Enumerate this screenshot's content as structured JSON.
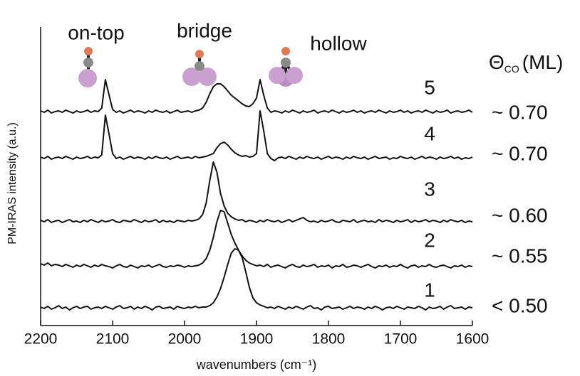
{
  "chart_data": {
    "type": "line",
    "x_label": "wavenumbers (cm⁻¹)",
    "y_label": "PM-IRAS intensity (a.u.)",
    "site_labels": [
      "on-top",
      "bridge",
      "hollow"
    ],
    "coverage_header": {
      "symbol": "Θ",
      "subscript": "CO",
      "unit": "(ML)"
    },
    "coverage_labels": [
      "< 0.50",
      "~ 0.55",
      "~ 0.60",
      "~ 0.70",
      "~ 0.70"
    ],
    "xlim": [
      2200,
      1600
    ],
    "xticks": [
      2200,
      2100,
      2000,
      1900,
      1800,
      1700,
      1600
    ],
    "ylim": [
      0,
      44
    ],
    "x": [
      2200,
      2195,
      2190,
      2185,
      2180,
      2175,
      2170,
      2165,
      2160,
      2155,
      2150,
      2145,
      2140,
      2135,
      2130,
      2125,
      2120,
      2115,
      2110,
      2105,
      2100,
      2095,
      2090,
      2085,
      2080,
      2075,
      2070,
      2065,
      2060,
      2055,
      2050,
      2045,
      2040,
      2035,
      2030,
      2025,
      2020,
      2015,
      2010,
      2005,
      2000,
      1995,
      1990,
      1985,
      1980,
      1975,
      1970,
      1965,
      1960,
      1955,
      1950,
      1945,
      1940,
      1935,
      1930,
      1925,
      1920,
      1915,
      1910,
      1905,
      1900,
      1895,
      1890,
      1885,
      1880,
      1875,
      1870,
      1865,
      1860,
      1855,
      1850,
      1845,
      1840,
      1835,
      1830,
      1825,
      1820,
      1815,
      1810,
      1805,
      1800,
      1795,
      1790,
      1785,
      1780,
      1775,
      1770,
      1765,
      1760,
      1755,
      1750,
      1745,
      1740,
      1735,
      1730,
      1725,
      1720,
      1715,
      1710,
      1705,
      1700,
      1695,
      1690,
      1685,
      1680,
      1675,
      1670,
      1665,
      1660,
      1655,
      1650,
      1645,
      1640,
      1635,
      1630,
      1625,
      1620,
      1615,
      1610,
      1605,
      1600
    ],
    "series": [
      {
        "name": "1",
        "color": "#111111",
        "values": [
          2.6,
          2.4,
          2.7,
          2.3,
          2.5,
          2.8,
          2.4,
          2.6,
          2.2,
          2.5,
          2.7,
          2.4,
          2.6,
          2.7,
          2.3,
          2.5,
          2.6,
          2.4,
          2.7,
          2.5,
          2.3,
          2.6,
          2.8,
          2.4,
          2.5,
          2.7,
          2.3,
          2.6,
          2.4,
          2.7,
          2.5,
          2.2,
          2.6,
          2.7,
          2.4,
          2.5,
          2.6,
          2.3,
          2.7,
          2.5,
          2.4,
          2.6,
          2.5,
          2.7,
          2.5,
          2.6,
          2.6,
          2.8,
          3.2,
          4.0,
          5.2,
          6.8,
          8.6,
          10.2,
          10.8,
          10.6,
          9.6,
          7.6,
          5.4,
          3.9,
          3.2,
          2.9,
          2.7,
          2.5,
          2.6,
          2.4,
          2.7,
          2.5,
          2.3,
          2.6,
          2.4,
          2.7,
          2.5,
          2.3,
          2.6,
          2.8,
          2.4,
          2.5,
          2.2,
          2.6,
          2.7,
          2.4,
          2.5,
          2.6,
          2.3,
          2.5,
          2.7,
          2.4,
          2.6,
          2.5,
          2.3,
          2.6,
          2.4,
          2.7,
          2.5,
          2.2,
          2.5,
          2.6,
          2.4,
          2.7,
          2.5,
          2.3,
          2.6,
          2.5,
          2.4,
          2.7,
          2.5,
          2.2,
          2.6,
          2.4,
          2.5,
          2.7,
          2.3,
          2.6,
          2.8,
          2.4,
          2.5,
          2.6,
          2.3,
          2.6,
          2.5
        ]
      },
      {
        "name": "2",
        "color": "#111111",
        "values": [
          8.7,
          8.5,
          8.8,
          8.4,
          8.6,
          8.5,
          8.3,
          8.6,
          8.4,
          8.2,
          8.5,
          8.3,
          8.6,
          8.4,
          8.2,
          8.5,
          8.3,
          8.6,
          8.4,
          8.3,
          8.1,
          8.4,
          8.6,
          8.3,
          8.2,
          8.5,
          8.3,
          8.1,
          8.4,
          8.3,
          8.5,
          8.2,
          8.4,
          8.6,
          8.3,
          8.2,
          8.4,
          8.3,
          8.5,
          8.4,
          8.2,
          8.4,
          8.3,
          8.4,
          8.5,
          8.8,
          9.4,
          10.6,
          12.4,
          14.6,
          16.2,
          16.0,
          14.4,
          12.8,
          11.6,
          10.6,
          9.8,
          9.2,
          8.8,
          8.6,
          8.4,
          8.5,
          8.3,
          8.6,
          8.2,
          8.4,
          8.5,
          8.3,
          8.1,
          8.4,
          8.6,
          8.3,
          8.2,
          8.5,
          8.3,
          8.4,
          8.6,
          8.2,
          8.4,
          8.3,
          8.5,
          8.1,
          8.4,
          8.3,
          8.6,
          8.2,
          8.3,
          8.5,
          8.4,
          8.2,
          8.4,
          8.6,
          8.3,
          8.1,
          8.4,
          8.3,
          8.5,
          8.2,
          8.4,
          8.3,
          8.6,
          8.3,
          8.1,
          8.4,
          8.5,
          8.2,
          8.4,
          8.3,
          8.6,
          8.3,
          8.2,
          8.4,
          8.5,
          8.3,
          8.1,
          8.4,
          8.3,
          8.5,
          8.2,
          8.4,
          8.3
        ]
      },
      {
        "name": "3",
        "color": "#111111",
        "values": [
          14.8,
          14.6,
          14.9,
          14.5,
          14.7,
          14.8,
          14.5,
          14.7,
          14.9,
          14.6,
          14.7,
          14.5,
          14.8,
          14.6,
          14.9,
          14.7,
          14.5,
          14.8,
          14.6,
          14.7,
          14.9,
          14.6,
          14.5,
          14.8,
          14.7,
          14.6,
          14.9,
          14.7,
          14.5,
          14.8,
          14.6,
          14.7,
          14.9,
          14.5,
          14.8,
          14.6,
          14.7,
          14.5,
          14.8,
          14.7,
          14.6,
          14.8,
          14.7,
          14.8,
          15.0,
          15.6,
          17.2,
          20.4,
          23.0,
          21.6,
          18.6,
          16.8,
          15.8,
          15.3,
          15.0,
          14.8,
          14.9,
          14.6,
          14.8,
          14.7,
          14.5,
          14.8,
          14.6,
          14.9,
          14.7,
          14.6,
          14.8,
          14.5,
          14.7,
          14.9,
          14.6,
          14.8,
          15.0,
          15.2,
          14.8,
          14.6,
          14.7,
          14.5,
          14.8,
          14.6,
          14.7,
          14.9,
          14.6,
          14.5,
          14.8,
          14.7,
          14.6,
          14.9,
          14.5,
          14.7,
          14.8,
          14.6,
          14.7,
          14.5,
          14.9,
          14.6,
          14.8,
          14.7,
          14.5,
          14.8,
          14.6,
          14.7,
          14.9,
          14.5,
          14.8,
          14.6,
          14.7,
          14.9,
          14.6,
          14.8,
          14.7,
          14.5,
          14.8,
          14.6,
          14.9,
          14.7,
          14.6,
          14.8,
          14.5,
          14.7,
          14.6
        ]
      },
      {
        "name": "4",
        "color": "#111111",
        "values": [
          23.7,
          23.5,
          23.8,
          23.4,
          23.6,
          23.7,
          23.5,
          23.8,
          23.6,
          23.4,
          23.7,
          23.5,
          23.6,
          23.8,
          23.5,
          23.7,
          23.6,
          24.0,
          29.6,
          27.0,
          24.2,
          23.5,
          23.7,
          23.4,
          23.6,
          23.8,
          23.5,
          23.7,
          23.6,
          23.4,
          23.7,
          23.5,
          23.8,
          23.6,
          23.5,
          23.7,
          23.4,
          23.6,
          23.8,
          23.5,
          23.6,
          23.7,
          23.5,
          23.8,
          23.6,
          23.7,
          23.8,
          24.0,
          24.2,
          25.0,
          25.6,
          25.8,
          25.4,
          24.8,
          24.3,
          24.0,
          23.8,
          23.9,
          23.7,
          23.8,
          24.2,
          30.2,
          27.4,
          24.2,
          23.5,
          23.2,
          23.6,
          23.7,
          23.5,
          23.8,
          23.6,
          23.4,
          23.7,
          23.5,
          23.8,
          23.6,
          23.5,
          23.7,
          23.4,
          23.6,
          23.8,
          23.5,
          23.7,
          23.6,
          23.4,
          23.7,
          23.5,
          23.8,
          23.6,
          23.5,
          23.7,
          23.4,
          23.6,
          23.8,
          23.5,
          23.6,
          23.7,
          23.4,
          23.6,
          23.5,
          23.8,
          23.6,
          23.5,
          23.7,
          23.4,
          23.6,
          23.8,
          23.5,
          23.7,
          23.6,
          23.4,
          23.7,
          23.5,
          23.6,
          23.8,
          23.5,
          23.7,
          23.4,
          23.6,
          23.5,
          23.7
        ]
      },
      {
        "name": "5",
        "color": "#111111",
        "values": [
          30.2,
          30.0,
          30.3,
          29.9,
          30.1,
          30.2,
          30.0,
          30.3,
          30.1,
          29.9,
          30.2,
          30.0,
          30.1,
          30.3,
          30.0,
          30.2,
          30.1,
          30.6,
          34.6,
          32.5,
          30.4,
          30.0,
          30.2,
          29.9,
          30.1,
          30.3,
          30.0,
          30.2,
          30.1,
          29.9,
          30.2,
          30.0,
          30.3,
          30.1,
          30.0,
          30.2,
          29.9,
          30.1,
          30.3,
          30.0,
          30.1,
          30.2,
          30.0,
          30.2,
          30.3,
          30.6,
          31.4,
          32.6,
          33.6,
          34.0,
          34.0,
          33.6,
          33.0,
          32.4,
          32.0,
          31.6,
          31.2,
          30.9,
          30.8,
          31.2,
          32.0,
          34.6,
          32.4,
          30.6,
          30.0,
          30.2,
          30.1,
          29.9,
          30.2,
          30.0,
          30.3,
          30.1,
          29.9,
          30.2,
          30.0,
          30.1,
          30.3,
          29.9,
          30.1,
          30.2,
          30.0,
          30.3,
          30.1,
          29.9,
          30.2,
          30.0,
          30.1,
          30.3,
          30.0,
          30.2,
          29.9,
          30.1,
          30.2,
          30.0,
          30.3,
          30.1,
          29.9,
          30.2,
          30.0,
          30.1,
          30.3,
          30.0,
          30.2,
          29.9,
          30.1,
          30.2,
          30.0,
          30.3,
          30.1,
          29.9,
          30.2,
          30.0,
          30.1,
          30.3,
          29.9,
          30.1,
          30.2,
          30.0,
          30.1,
          30.3,
          30.0
        ]
      }
    ]
  }
}
